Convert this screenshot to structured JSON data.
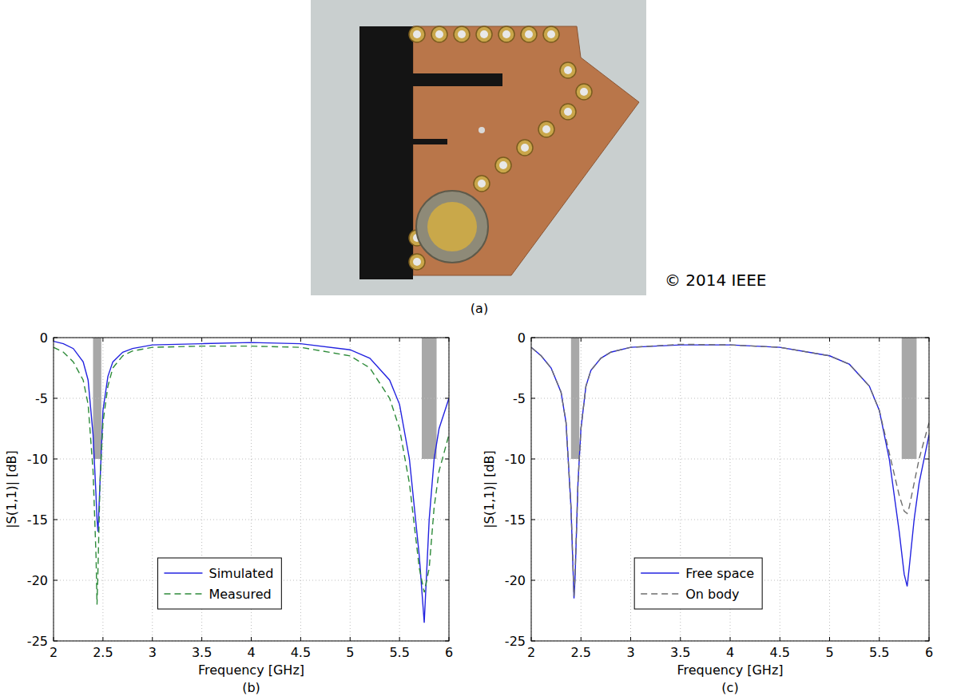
{
  "photo": {
    "label": "(a)",
    "credit": "© 2014 IEEE"
  },
  "chart_data": [
    {
      "type": "line",
      "title": "(b)",
      "x_label": "Frequency [GHz]",
      "y_label": "|S(1,1)| [dB]",
      "x": [
        2,
        2.1,
        2.2,
        2.3,
        2.35,
        2.4,
        2.43,
        2.44,
        2.45,
        2.47,
        2.5,
        2.55,
        2.6,
        2.7,
        2.8,
        3,
        3.5,
        4,
        4.5,
        5,
        5.2,
        5.4,
        5.5,
        5.6,
        5.7,
        5.75,
        5.8,
        5.85,
        5.9,
        6
      ],
      "series": [
        {
          "name": "Simulated",
          "color": "#2323e0",
          "line_style": "solid",
          "values": [
            -0.3,
            -0.5,
            -0.9,
            -2,
            -3.5,
            -8,
            -13,
            -15,
            -16,
            -12,
            -6,
            -3.2,
            -2,
            -1.2,
            -0.9,
            -0.6,
            -0.5,
            -0.4,
            -0.5,
            -1,
            -1.7,
            -3.5,
            -5.5,
            -10,
            -18,
            -23.5,
            -15,
            -10,
            -7.5,
            -5
          ]
        },
        {
          "name": "Measured",
          "color": "#2e8b3a",
          "line_style": "dashed",
          "values": [
            -0.8,
            -1.2,
            -2,
            -3.5,
            -5.5,
            -11,
            -18,
            -22,
            -19,
            -12,
            -7,
            -4,
            -2.5,
            -1.5,
            -1.1,
            -0.8,
            -0.7,
            -0.7,
            -0.8,
            -1.5,
            -2.5,
            -5,
            -7.5,
            -12,
            -19,
            -21,
            -19,
            -14,
            -11,
            -8
          ]
        }
      ],
      "bands": [
        {
          "from": 2.4,
          "to": 2.4835,
          "depth": -10
        },
        {
          "from": 5.725,
          "to": 5.875,
          "depth": -10
        }
      ],
      "xlim": [
        2,
        6
      ],
      "xticks": [
        2,
        2.5,
        3,
        3.5,
        4,
        4.5,
        5,
        5.5,
        6
      ],
      "ylim": [
        -25,
        0
      ],
      "yticks": [
        0,
        -5,
        -10,
        -15,
        -20,
        -25
      ],
      "grid": true,
      "legend": "lower center"
    },
    {
      "type": "line",
      "title": "(c)",
      "x_label": "Frequency [GHz]",
      "y_label": "|S(1,1)| [dB]",
      "x": [
        2,
        2.1,
        2.2,
        2.3,
        2.35,
        2.4,
        2.43,
        2.44,
        2.47,
        2.5,
        2.55,
        2.6,
        2.7,
        2.8,
        3,
        3.5,
        4,
        4.5,
        5,
        5.2,
        5.4,
        5.5,
        5.6,
        5.7,
        5.75,
        5.78,
        5.8,
        5.85,
        5.9,
        6
      ],
      "series": [
        {
          "name": "Free space",
          "color": "#2323e0",
          "line_style": "solid",
          "values": [
            -0.8,
            -1.5,
            -2.5,
            -4.5,
            -7,
            -14,
            -21.5,
            -20,
            -12,
            -7.5,
            -4,
            -2.7,
            -1.7,
            -1.2,
            -0.8,
            -0.6,
            -0.6,
            -0.8,
            -1.5,
            -2.2,
            -4,
            -6,
            -10,
            -16,
            -19.5,
            -20.5,
            -19,
            -15,
            -12,
            -8
          ]
        },
        {
          "name": "On body",
          "color": "#6e6e6e",
          "line_style": "dashed",
          "values": [
            -0.8,
            -1.5,
            -2.5,
            -4.5,
            -7,
            -14,
            -21.3,
            -19.8,
            -12,
            -7.5,
            -4,
            -2.7,
            -1.7,
            -1.2,
            -0.8,
            -0.55,
            -0.6,
            -0.8,
            -1.5,
            -2.2,
            -4,
            -6,
            -9.5,
            -13,
            -14.3,
            -14.5,
            -14,
            -12,
            -10,
            -7
          ]
        }
      ],
      "bands": [
        {
          "from": 2.4,
          "to": 2.4835,
          "depth": -10
        },
        {
          "from": 5.725,
          "to": 5.875,
          "depth": -10
        }
      ],
      "xlim": [
        2,
        6
      ],
      "xticks": [
        2,
        2.5,
        3,
        3.5,
        4,
        4.5,
        5,
        5.5,
        6
      ],
      "ylim": [
        -25,
        0
      ],
      "yticks": [
        0,
        -5,
        -10,
        -15,
        -20,
        -25
      ],
      "grid": true,
      "legend": "lower center"
    }
  ]
}
